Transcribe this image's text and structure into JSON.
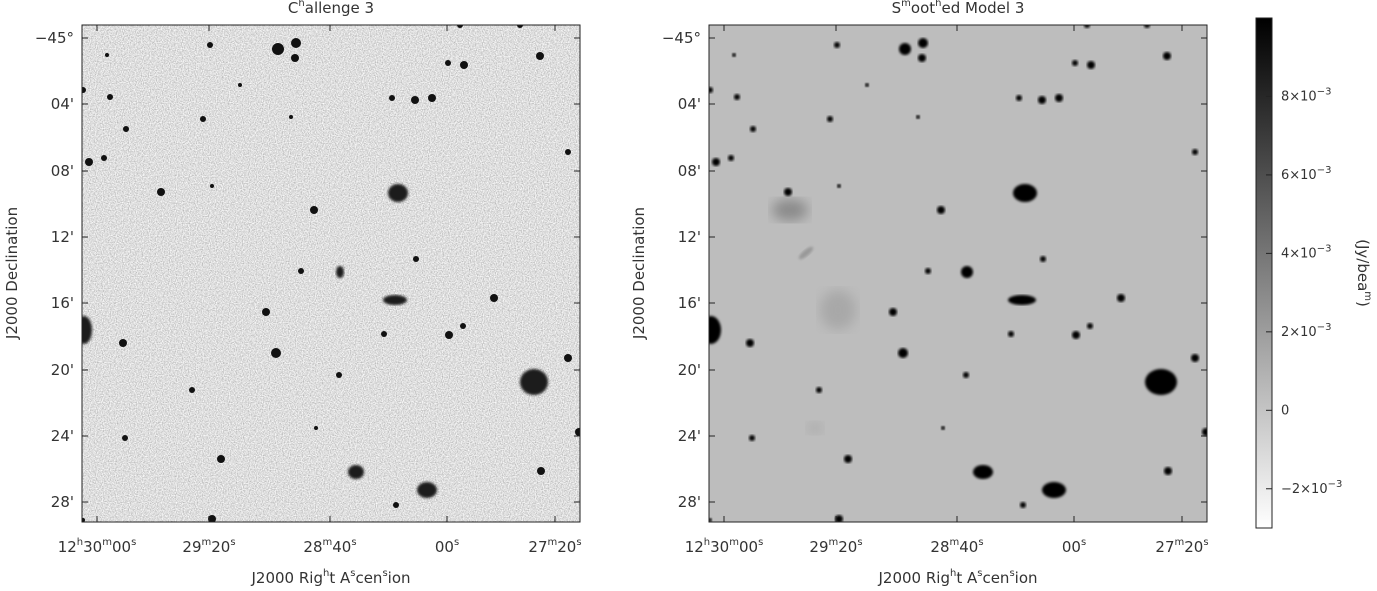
{
  "panels": [
    {
      "title": "Challenge 3",
      "x_label": "J2000 Right Ascension",
      "y_label": "J2000 Declination",
      "x_ticks": [
        "12h30m00s",
        "29m20s",
        "28m40s",
        "00s",
        "27m20s"
      ],
      "y_ticks": [
        "−45°",
        "04'",
        "08'",
        "12'",
        "16'",
        "20'",
        "24'",
        "28'"
      ]
    },
    {
      "title": "Smoothed Model 3",
      "x_label": "J2000 Right Ascension",
      "y_label": "J2000 Declination",
      "x_ticks": [
        "12h30m00s",
        "29m20s",
        "28m40s",
        "00s",
        "27m20s"
      ],
      "y_ticks": [
        "−45°",
        "04'",
        "08'",
        "12'",
        "16'",
        "20'",
        "24'",
        "28'"
      ]
    }
  ],
  "colorbar": {
    "label": "(Jy/beam)",
    "lim": [
      -0.003,
      0.01
    ],
    "ticks": [
      {
        "value": 0.008,
        "label": "8×10−3"
      },
      {
        "value": 0.006,
        "label": "6×10−3"
      },
      {
        "value": 0.004,
        "label": "4×10−3"
      },
      {
        "value": 0.002,
        "label": "2×10−3"
      },
      0,
      {
        "value": -0.002,
        "label": "−2×10−3"
      }
    ]
  }
}
